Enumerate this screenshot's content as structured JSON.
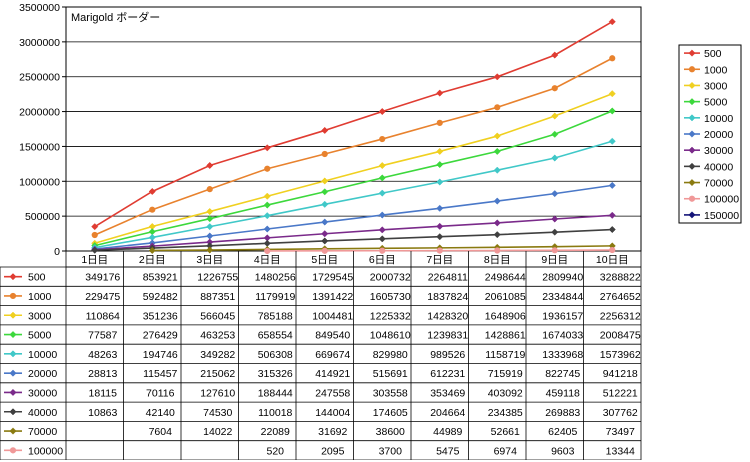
{
  "chart_data": {
    "type": "line",
    "title": "Marigold ボーダー",
    "categories": [
      "1日目",
      "2日目",
      "3日目",
      "4日目",
      "5日目",
      "6日目",
      "7日目",
      "8日目",
      "9日目",
      "10日目"
    ],
    "ylim": [
      0,
      3500000
    ],
    "yticks": [
      "0",
      "500000",
      "1000000",
      "1500000",
      "2000000",
      "2500000",
      "3000000",
      "3500000"
    ],
    "grid": true,
    "legend": "right",
    "series": [
      {
        "name": "500",
        "color": "#E03C32",
        "marker": "diamond",
        "values": [
          349176,
          853921,
          1226755,
          1480256,
          1729545,
          2000732,
          2264811,
          2498644,
          2809940,
          3288822
        ]
      },
      {
        "name": "1000",
        "color": "#E8822E",
        "marker": "circle",
        "values": [
          229475,
          592482,
          887351,
          1179919,
          1391422,
          1605730,
          1837824,
          2061085,
          2334844,
          2764652
        ]
      },
      {
        "name": "3000",
        "color": "#F0D020",
        "marker": "diamond",
        "values": [
          110864,
          351236,
          566045,
          785188,
          1004481,
          1225332,
          1428320,
          1648906,
          1936157,
          2256312
        ]
      },
      {
        "name": "5000",
        "color": "#3CD83C",
        "marker": "diamond",
        "values": [
          77587,
          276429,
          463253,
          658554,
          849540,
          1048610,
          1239831,
          1428861,
          1674033,
          2008475
        ]
      },
      {
        "name": "10000",
        "color": "#40C8C8",
        "marker": "diamond",
        "values": [
          48263,
          194746,
          349282,
          506308,
          669674,
          829980,
          989526,
          1158719,
          1333968,
          1573962
        ]
      },
      {
        "name": "20000",
        "color": "#4A78C8",
        "marker": "diamond",
        "values": [
          28813,
          115457,
          215062,
          315326,
          414921,
          515691,
          612231,
          715919,
          822745,
          941218
        ]
      },
      {
        "name": "30000",
        "color": "#7A2A8A",
        "marker": "diamond",
        "values": [
          18115,
          70116,
          127610,
          188444,
          247558,
          303558,
          353469,
          403092,
          459118,
          512221
        ]
      },
      {
        "name": "40000",
        "color": "#404040",
        "marker": "diamond",
        "values": [
          10863,
          42140,
          74530,
          110018,
          144004,
          174605,
          204664,
          234385,
          269883,
          307762
        ]
      },
      {
        "name": "70000",
        "color": "#8A7A10",
        "marker": "diamond",
        "values": [
          null,
          7604,
          14022,
          22089,
          31692,
          38600,
          44989,
          52661,
          62405,
          73497
        ]
      },
      {
        "name": "100000",
        "color": "#F09898",
        "marker": "circle",
        "values": [
          null,
          null,
          null,
          520,
          2095,
          3700,
          5475,
          6974,
          9603,
          13344
        ]
      },
      {
        "name": "150000",
        "color": "#141478",
        "marker": "diamond",
        "values": [
          null,
          null,
          null,
          null,
          null,
          null,
          null,
          null,
          null,
          null
        ]
      }
    ]
  },
  "table": {
    "rows": [
      [
        "349176",
        "853921",
        "1226755",
        "1480256",
        "1729545",
        "2000732",
        "2264811",
        "2498644",
        "2809940",
        "3288822"
      ],
      [
        "229475",
        "592482",
        "887351",
        "1179919",
        "1391422",
        "1605730",
        "1837824",
        "2061085",
        "2334844",
        "2764652"
      ],
      [
        "110864",
        "351236",
        "566045",
        "785188",
        "1004481",
        "1225332",
        "1428320",
        "1648906",
        "1936157",
        "2256312"
      ],
      [
        "77587",
        "276429",
        "463253",
        "658554",
        "849540",
        "1048610",
        "1239831",
        "1428861",
        "1674033",
        "2008475"
      ],
      [
        "48263",
        "194746",
        "349282",
        "506308",
        "669674",
        "829980",
        "989526",
        "1158719",
        "1333968",
        "1573962"
      ],
      [
        "28813",
        "115457",
        "215062",
        "315326",
        "414921",
        "515691",
        "612231",
        "715919",
        "822745",
        "941218"
      ],
      [
        "18115",
        "70116",
        "127610",
        "188444",
        "247558",
        "303558",
        "353469",
        "403092",
        "459118",
        "512221"
      ],
      [
        "10863",
        "42140",
        "74530",
        "110018",
        "144004",
        "174605",
        "204664",
        "234385",
        "269883",
        "307762"
      ],
      [
        "",
        "7604",
        "14022",
        "22089",
        "31692",
        "38600",
        "44989",
        "52661",
        "62405",
        "73497"
      ],
      [
        "",
        "",
        "",
        "520",
        "2095",
        "3700",
        "5475",
        "6974",
        "9603",
        "13344"
      ],
      [
        "",
        "",
        "",
        "",
        "",
        "",
        "",
        "",
        "",
        ""
      ]
    ]
  }
}
